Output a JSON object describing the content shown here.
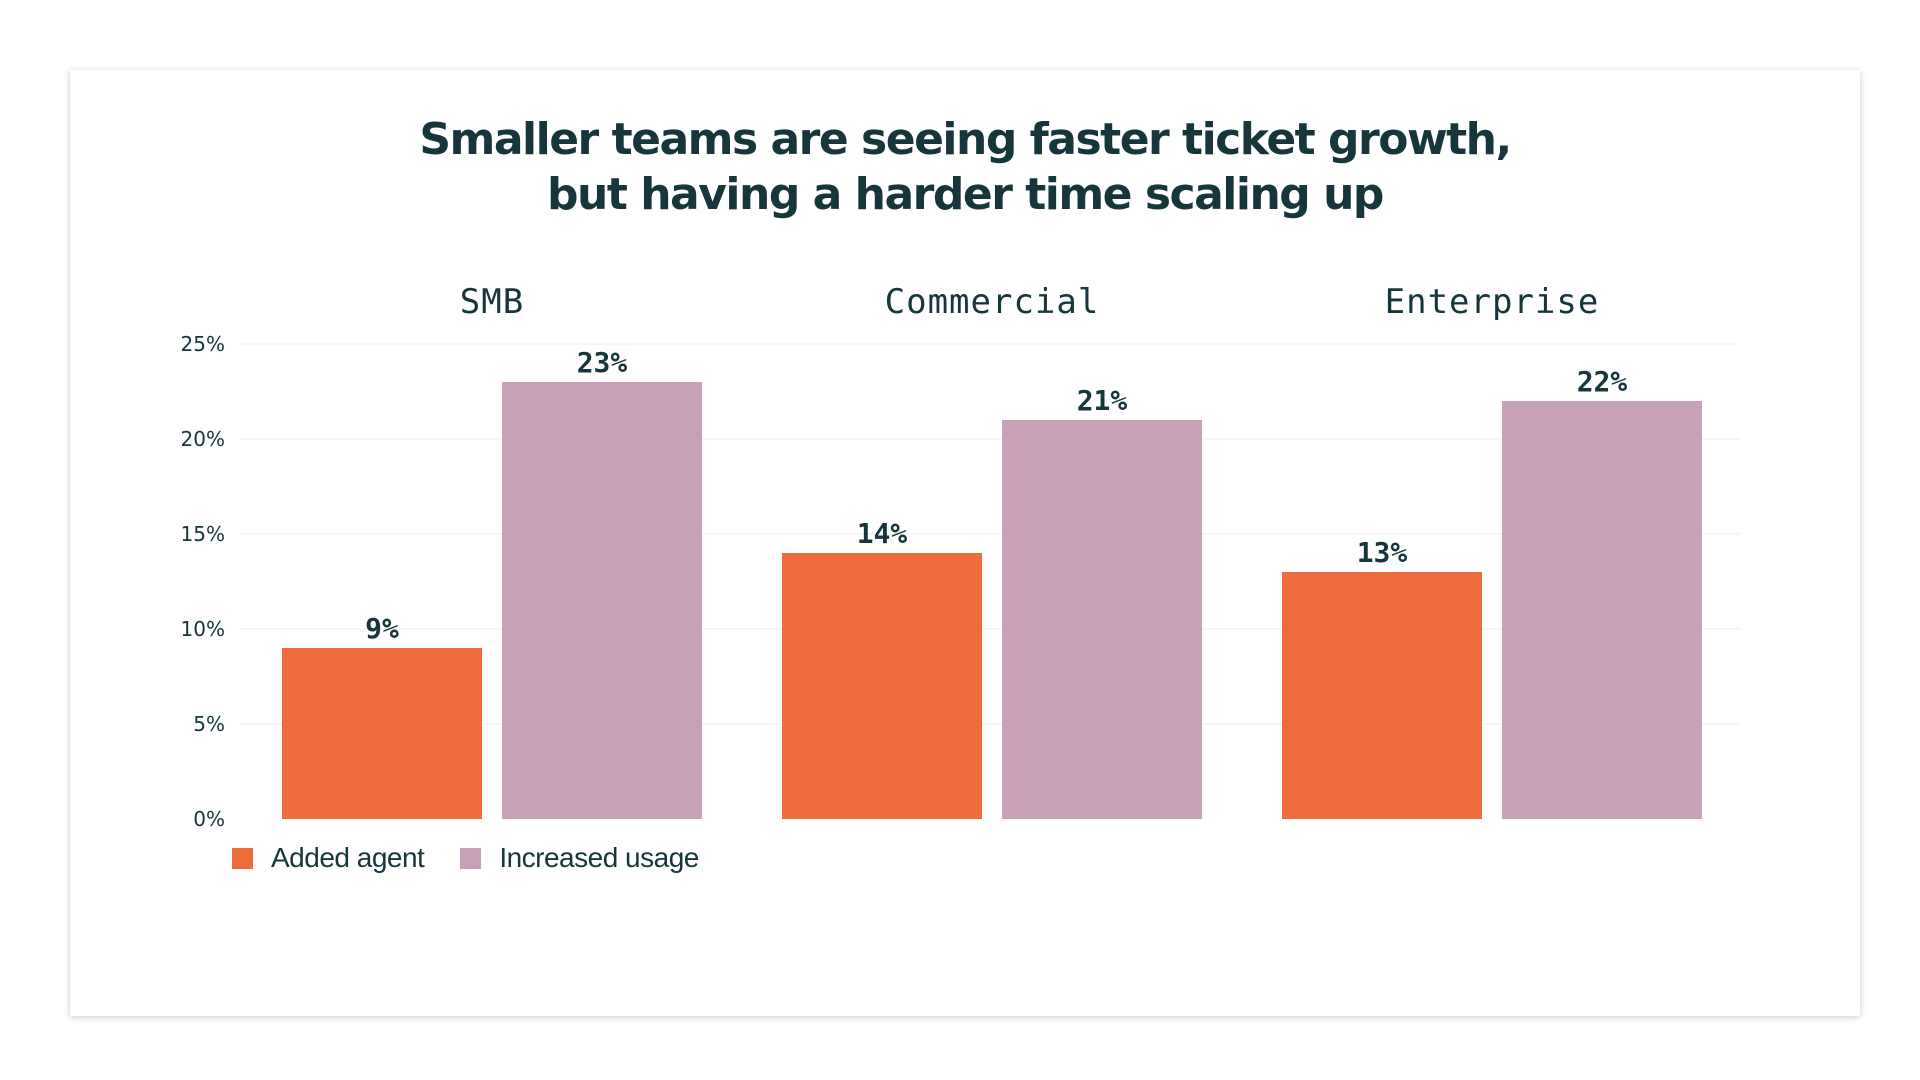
{
  "chart_data": {
    "type": "bar",
    "title": [
      "Smaller teams are seeing faster ticket growth,",
      "but having a harder time scaling up"
    ],
    "categories": [
      "SMB",
      "Commercial",
      "Enterprise"
    ],
    "series": [
      {
        "name": "Added agent",
        "values": [
          9,
          14,
          13
        ],
        "color": "#ee6c3b"
      },
      {
        "name": "Increased usage",
        "values": [
          23,
          21,
          22
        ],
        "color": "#c7a1b6"
      }
    ],
    "data_labels": [
      [
        "9%",
        "14%",
        "13%"
      ],
      [
        "23%",
        "21%",
        "22%"
      ]
    ],
    "y_ticks": [
      "0%",
      "5%",
      "10%",
      "15%",
      "20%",
      "25%"
    ],
    "ylim": [
      0,
      25
    ],
    "grid": true,
    "legend_position": "bottom-left"
  },
  "colors": {
    "text": "#17363b",
    "gridline": "#ececec"
  }
}
